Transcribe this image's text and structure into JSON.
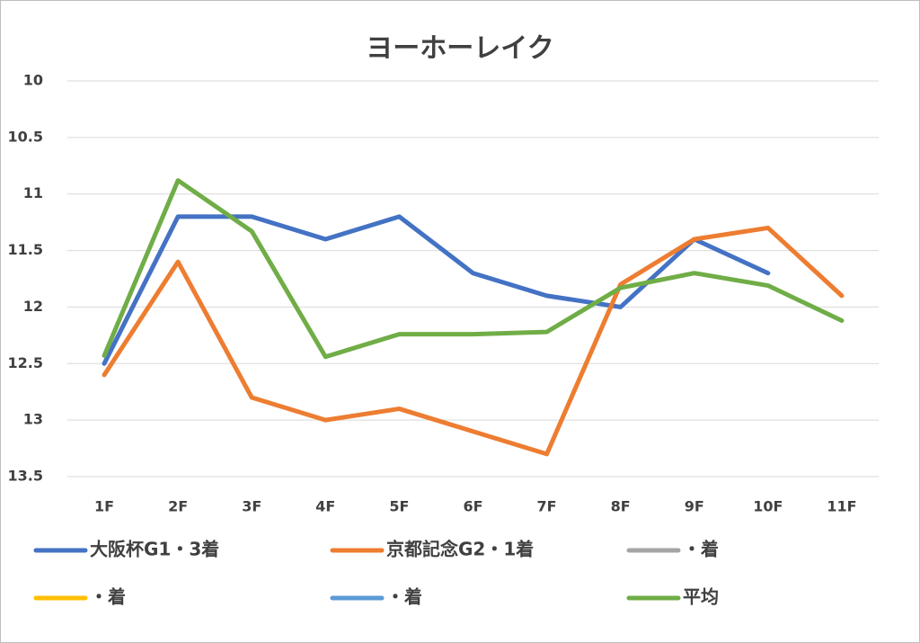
{
  "chart_data": {
    "type": "line",
    "title": "ヨーホーレイク",
    "categories": [
      "1F",
      "2F",
      "3F",
      "4F",
      "5F",
      "6F",
      "7F",
      "8F",
      "9F",
      "10F",
      "11F"
    ],
    "series": [
      {
        "name": "大阪杯G1・3着",
        "color": "#4472c4",
        "values": [
          12.5,
          11.2,
          11.2,
          11.4,
          11.2,
          11.7,
          11.9,
          12.0,
          11.4,
          11.7,
          null
        ]
      },
      {
        "name": "京都記念G2・1着",
        "color": "#ed7d31",
        "values": [
          12.6,
          11.6,
          12.8,
          13.0,
          12.9,
          13.1,
          13.3,
          11.8,
          11.4,
          11.3,
          11.9
        ]
      },
      {
        "name": "・着",
        "color": "#a5a5a5",
        "values": [
          null,
          null,
          null,
          null,
          null,
          null,
          null,
          null,
          null,
          null,
          null
        ]
      },
      {
        "name": "・着",
        "color": "#ffc000",
        "values": [
          null,
          null,
          null,
          null,
          null,
          null,
          null,
          null,
          null,
          null,
          null
        ]
      },
      {
        "name": "・着",
        "color": "#5b9bd5",
        "values": [
          null,
          null,
          null,
          null,
          null,
          null,
          null,
          null,
          null,
          null,
          null
        ]
      },
      {
        "name": "平均",
        "color": "#70ad47",
        "values": [
          12.43,
          10.88,
          11.33,
          12.44,
          12.24,
          12.24,
          12.22,
          11.83,
          11.7,
          11.81,
          12.12
        ]
      }
    ],
    "ylim": [
      10,
      13.5
    ],
    "y_inverted": true,
    "yticks": [
      10,
      10.5,
      11,
      11.5,
      12,
      12.5,
      13,
      13.5
    ],
    "grid": true
  }
}
